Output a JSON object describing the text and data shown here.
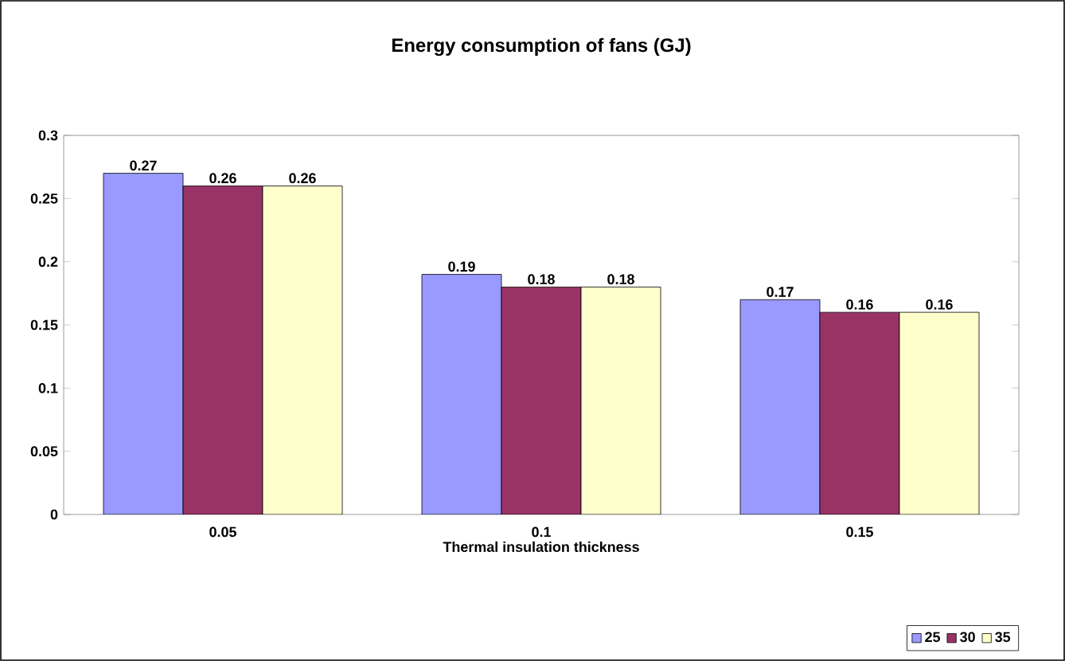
{
  "chart_data": {
    "type": "bar",
    "title": "Energy consumption of fans (GJ)",
    "xlabel": "Thermal insulation thickness",
    "categories": [
      "0.05",
      "0.1",
      "0.15"
    ],
    "series": [
      {
        "name": "25",
        "color": "#9999ff",
        "values": [
          0.27,
          0.19,
          0.17
        ]
      },
      {
        "name": "30",
        "color": "#993366",
        "values": [
          0.26,
          0.18,
          0.16
        ]
      },
      {
        "name": "35",
        "color": "#ffffcc",
        "values": [
          0.26,
          0.18,
          0.16
        ]
      }
    ],
    "ylim": [
      0,
      0.3
    ],
    "yticks": [
      0,
      0.05,
      0.1,
      0.15,
      0.2,
      0.25,
      0.3
    ],
    "data_labels": true,
    "legend": "bottom right"
  }
}
